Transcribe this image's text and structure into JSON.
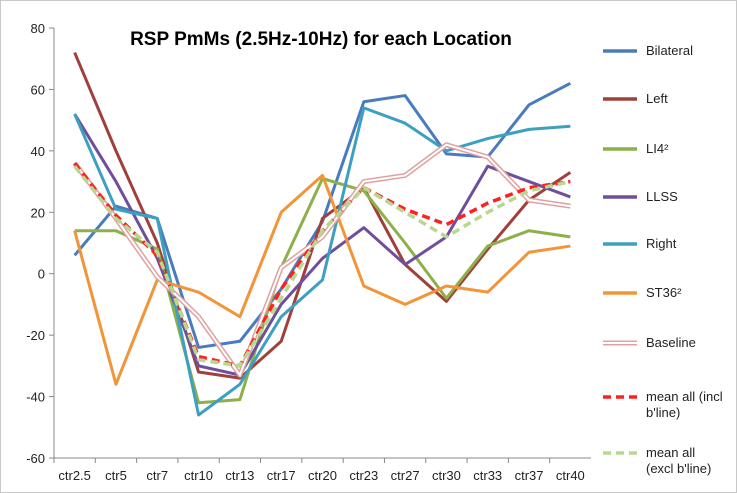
{
  "chart_data": {
    "type": "line",
    "title": "RSP PmMs (2.5Hz-10Hz) for each Location",
    "categories": [
      "ctr2.5",
      "ctr5",
      "ctr7",
      "ctr10",
      "ctr13",
      "ctr17",
      "ctr20",
      "ctr23",
      "ctr27",
      "ctr30",
      "ctr33",
      "ctr37",
      "ctr40"
    ],
    "ylim": [
      -60,
      80
    ],
    "yticks": [
      -60,
      -40,
      -20,
      0,
      20,
      40,
      60,
      80
    ],
    "series": [
      {
        "name": "Bilateral",
        "color": "#4a7bbf",
        "values": [
          6,
          22,
          18,
          -24,
          -22,
          -5,
          17,
          56,
          58,
          39,
          38,
          55,
          62
        ]
      },
      {
        "name": "Left",
        "color": "#a0403c",
        "values": [
          72,
          40,
          10,
          -32,
          -34,
          -22,
          18,
          28,
          3,
          -9,
          8,
          24,
          33
        ]
      },
      {
        "name": "LI4²",
        "color": "#8db04a",
        "values": [
          14,
          14,
          8,
          -42,
          -41,
          2,
          31,
          27,
          10,
          -8,
          9,
          14,
          12
        ]
      },
      {
        "name": "LLSS",
        "color": "#6f4f9c",
        "values": [
          52,
          30,
          5,
          -30,
          -33,
          -10,
          5,
          15,
          3,
          12,
          35,
          30,
          25
        ]
      },
      {
        "name": "Right",
        "color": "#3ea0c0",
        "values": [
          52,
          21,
          18,
          -46,
          -36,
          -14,
          -2,
          54,
          49,
          40,
          44,
          47,
          48
        ]
      },
      {
        "name": "ST36²",
        "color": "#f29539",
        "values": [
          14,
          -36,
          -2,
          -6,
          -14,
          20,
          32,
          -4,
          -10,
          -4,
          -6,
          7,
          9
        ]
      },
      {
        "name": "Baseline",
        "color": "#e0a0a0",
        "style": "double",
        "values": [
          36,
          18,
          -1,
          -14,
          -33,
          2,
          12,
          30,
          32,
          42,
          38,
          24,
          22
        ]
      },
      {
        "name": "mean all (incl b'line)",
        "color": "#ff2020",
        "style": "dashed",
        "values": [
          36,
          19,
          6,
          -27,
          -30,
          -5,
          14,
          28,
          21,
          16,
          23,
          28,
          30
        ]
      },
      {
        "name": "mean all (excl b'line)",
        "color": "#b8d890",
        "style": "dashed",
        "values": [
          35,
          18,
          7,
          -28,
          -30,
          -8,
          14,
          28,
          20,
          12,
          20,
          27,
          30
        ]
      }
    ]
  }
}
